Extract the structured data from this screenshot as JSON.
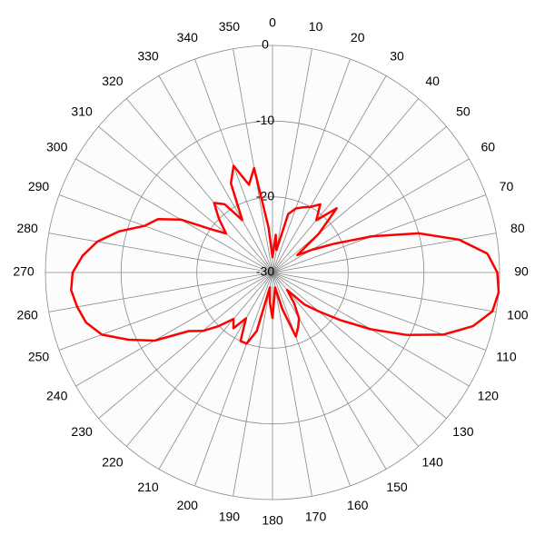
{
  "chart_data": {
    "type": "polar",
    "rlim": [
      -30,
      0
    ],
    "rticks": [
      0,
      -10,
      -20,
      -30
    ],
    "thetaticks": [
      0,
      10,
      20,
      30,
      40,
      50,
      60,
      70,
      80,
      90,
      100,
      110,
      120,
      130,
      140,
      150,
      160,
      170,
      180,
      190,
      200,
      210,
      220,
      230,
      240,
      250,
      260,
      270,
      280,
      290,
      300,
      310,
      320,
      330,
      340,
      350
    ],
    "theta": [
      0,
      5,
      10,
      15,
      20,
      25,
      30,
      35,
      40,
      45,
      50,
      55,
      60,
      65,
      70,
      75,
      80,
      85,
      90,
      95,
      100,
      105,
      110,
      115,
      120,
      125,
      130,
      135,
      140,
      145,
      150,
      155,
      160,
      165,
      170,
      175,
      180,
      185,
      190,
      195,
      200,
      205,
      210,
      215,
      220,
      225,
      230,
      235,
      240,
      245,
      250,
      255,
      260,
      265,
      270,
      275,
      280,
      285,
      290,
      295,
      300,
      305,
      310,
      315,
      320,
      325,
      330,
      335,
      340,
      345,
      350,
      355
    ],
    "series": [
      {
        "color": "#ff0000",
        "values": [
          -28,
          -25,
          -27,
          -22,
          -21,
          -20.5,
          -20,
          -19,
          -21,
          -18,
          -22,
          -26,
          -24,
          -21,
          -16,
          -10,
          -5,
          -1.5,
          -0.3,
          0,
          -0.5,
          -2.6,
          -6,
          -10.5,
          -15,
          -19,
          -22,
          -24,
          -27,
          -25,
          -23,
          -22,
          -21,
          -25,
          -28,
          -27,
          -24,
          -26,
          -28,
          -22,
          -20,
          -20,
          -23,
          -21,
          -22,
          -20,
          -18,
          -16.5,
          -12,
          -9,
          -6,
          -4.5,
          -3.8,
          -3.3,
          -3.6,
          -4.8,
          -6.5,
          -9,
          -12,
          -13.3,
          -16,
          -20,
          -22,
          -20,
          -18,
          -19,
          -22,
          -17,
          -15,
          -18,
          -16,
          -24
        ]
      }
    ]
  }
}
